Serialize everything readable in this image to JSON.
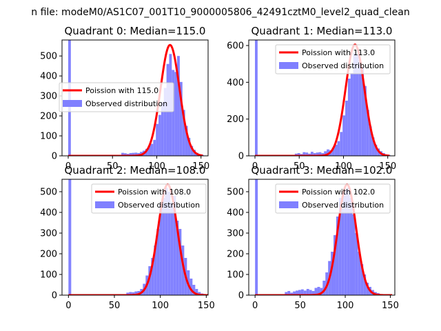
{
  "figure": {
    "suptitle": "n file: modeM0/AS1C07_001T10_9000005806_42491cztM0_level2_quad_clean"
  },
  "colors": {
    "hist_fill": "#8080ff",
    "hist_fill_opacity": 0.98,
    "poisson_line": "#ff0000",
    "axis": "#000000",
    "background": "#ffffff"
  },
  "chart_data": [
    {
      "type": "bar",
      "title": "Quadrant 0: Median=115.0",
      "median": 115,
      "xlim": [
        -7,
        158
      ],
      "ylim": [
        0,
        580
      ],
      "xticks": [
        0,
        50,
        100,
        150
      ],
      "yticks": [
        0,
        100,
        200,
        300,
        400,
        500
      ],
      "legend": {
        "position": "center-left",
        "line_label": "Poission with 115.0",
        "hist_label": "Observed distribution"
      },
      "poisson_peak": 555,
      "poisson_sigma": 10.7,
      "hist_bin_width": 3,
      "hist": [
        [
          0,
          580
        ],
        [
          60,
          15
        ],
        [
          63,
          13
        ],
        [
          66,
          10
        ],
        [
          69,
          14
        ],
        [
          72,
          15
        ],
        [
          75,
          16
        ],
        [
          78,
          14
        ],
        [
          81,
          20
        ],
        [
          84,
          26
        ],
        [
          87,
          35
        ],
        [
          90,
          50
        ],
        [
          93,
          60
        ],
        [
          96,
          80
        ],
        [
          99,
          160
        ],
        [
          102,
          205
        ],
        [
          105,
          270
        ],
        [
          108,
          340
        ],
        [
          111,
          460
        ],
        [
          114,
          510
        ],
        [
          117,
          430
        ],
        [
          120,
          420
        ],
        [
          123,
          500
        ],
        [
          126,
          370
        ],
        [
          129,
          230
        ],
        [
          132,
          150
        ],
        [
          135,
          90
        ],
        [
          138,
          50
        ],
        [
          141,
          30
        ],
        [
          144,
          15
        ],
        [
          147,
          8
        ],
        [
          150,
          5
        ]
      ]
    },
    {
      "type": "bar",
      "title": "Quadrant 1: Median=113.0",
      "median": 113,
      "xlim": [
        -7,
        158
      ],
      "ylim": [
        0,
        630
      ],
      "xticks": [
        0,
        50,
        100,
        150
      ],
      "yticks": [
        0,
        200,
        400,
        600
      ],
      "legend": {
        "position": "top-right",
        "line_label": "Poission with 113.0",
        "hist_label": "Observed distribution"
      },
      "poisson_peak": 605,
      "poisson_sigma": 10.6,
      "hist_bin_width": 3,
      "hist": [
        [
          0,
          630
        ],
        [
          45,
          12
        ],
        [
          48,
          15
        ],
        [
          51,
          10
        ],
        [
          54,
          20
        ],
        [
          57,
          18
        ],
        [
          60,
          12
        ],
        [
          63,
          22
        ],
        [
          66,
          15
        ],
        [
          69,
          18
        ],
        [
          72,
          20
        ],
        [
          75,
          15
        ],
        [
          78,
          25
        ],
        [
          81,
          35
        ],
        [
          84,
          30
        ],
        [
          87,
          45
        ],
        [
          90,
          60
        ],
        [
          93,
          80
        ],
        [
          96,
          130
        ],
        [
          99,
          220
        ],
        [
          102,
          300
        ],
        [
          105,
          420
        ],
        [
          108,
          450
        ],
        [
          111,
          560
        ],
        [
          114,
          550
        ],
        [
          117,
          520
        ],
        [
          120,
          480
        ],
        [
          123,
          380
        ],
        [
          126,
          250
        ],
        [
          129,
          160
        ],
        [
          132,
          100
        ],
        [
          135,
          60
        ],
        [
          138,
          40
        ],
        [
          141,
          25
        ],
        [
          144,
          15
        ],
        [
          147,
          8
        ],
        [
          150,
          5
        ]
      ]
    },
    {
      "type": "bar",
      "title": "Quadrant 2: Median=108.0",
      "median": 108,
      "xlim": [
        -7,
        152
      ],
      "ylim": [
        0,
        560
      ],
      "xticks": [
        0,
        50,
        100,
        150
      ],
      "yticks": [
        0,
        100,
        200,
        300,
        400,
        500
      ],
      "legend": {
        "position": "top-right",
        "line_label": "Poission with 108.0",
        "hist_label": "Observed distribution"
      },
      "poisson_peak": 535,
      "poisson_sigma": 10.4,
      "hist_bin_width": 3,
      "hist": [
        [
          0,
          560
        ],
        [
          63,
          12
        ],
        [
          66,
          15
        ],
        [
          69,
          14
        ],
        [
          72,
          18
        ],
        [
          75,
          20
        ],
        [
          78,
          30
        ],
        [
          81,
          55
        ],
        [
          84,
          95
        ],
        [
          87,
          140
        ],
        [
          90,
          180
        ],
        [
          93,
          240
        ],
        [
          96,
          320
        ],
        [
          99,
          440
        ],
        [
          102,
          470
        ],
        [
          105,
          520
        ],
        [
          108,
          500
        ],
        [
          111,
          450
        ],
        [
          114,
          480
        ],
        [
          117,
          360
        ],
        [
          120,
          320
        ],
        [
          123,
          240
        ],
        [
          126,
          180
        ],
        [
          129,
          120
        ],
        [
          132,
          80
        ],
        [
          135,
          50
        ],
        [
          138,
          30
        ],
        [
          141,
          15
        ],
        [
          144,
          8
        ]
      ]
    },
    {
      "type": "bar",
      "title": "Quadrant 3: Median=102.0",
      "median": 102,
      "xlim": [
        -7,
        155
      ],
      "ylim": [
        0,
        560
      ],
      "xticks": [
        0,
        50,
        100,
        150
      ],
      "yticks": [
        0,
        100,
        200,
        300,
        400,
        500
      ],
      "legend": {
        "position": "top-right",
        "line_label": "Poission with 102.0",
        "hist_label": "Observed distribution"
      },
      "poisson_peak": 535,
      "poisson_sigma": 10.1,
      "hist_bin_width": 3,
      "hist": [
        [
          0,
          560
        ],
        [
          33,
          15
        ],
        [
          36,
          20
        ],
        [
          39,
          12
        ],
        [
          42,
          18
        ],
        [
          45,
          22
        ],
        [
          48,
          25
        ],
        [
          51,
          28
        ],
        [
          54,
          22
        ],
        [
          57,
          30
        ],
        [
          60,
          25
        ],
        [
          63,
          20
        ],
        [
          66,
          35
        ],
        [
          69,
          40
        ],
        [
          72,
          35
        ],
        [
          75,
          70
        ],
        [
          78,
          110
        ],
        [
          81,
          165
        ],
        [
          84,
          210
        ],
        [
          87,
          290
        ],
        [
          90,
          380
        ],
        [
          93,
          470
        ],
        [
          96,
          500
        ],
        [
          99,
          510
        ],
        [
          102,
          520
        ],
        [
          105,
          470
        ],
        [
          108,
          390
        ],
        [
          111,
          300
        ],
        [
          114,
          210
        ],
        [
          117,
          150
        ],
        [
          120,
          100
        ],
        [
          123,
          60
        ],
        [
          126,
          40
        ],
        [
          129,
          25
        ],
        [
          132,
          15
        ],
        [
          135,
          10
        ],
        [
          138,
          5
        ]
      ]
    }
  ]
}
